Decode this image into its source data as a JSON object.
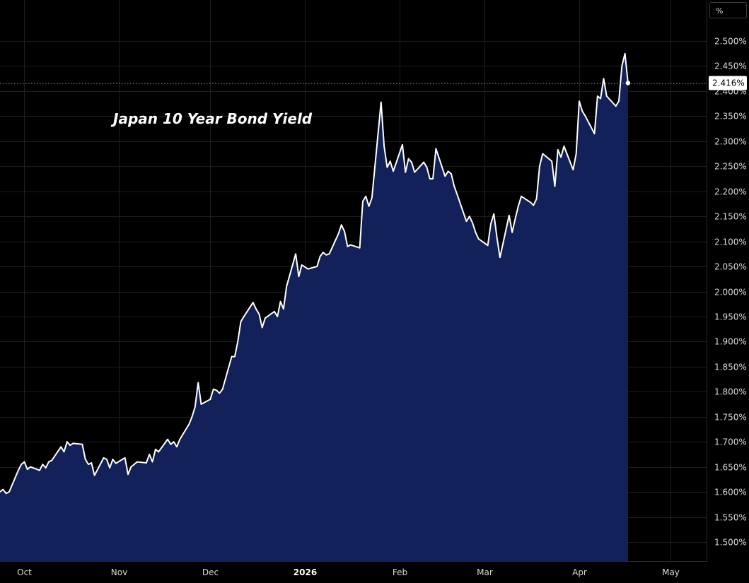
{
  "chart_data": {
    "type": "area",
    "title": "Japan 10 Year Bond Yield",
    "unit": "%",
    "last_value": 2.416,
    "last_value_label": "2.416%",
    "ylim": [
      1.46,
      2.56
    ],
    "y_ticks": [
      {
        "value": 1.5,
        "label": "1.500%"
      },
      {
        "value": 1.55,
        "label": "1.550%"
      },
      {
        "value": 1.6,
        "label": "1.600%"
      },
      {
        "value": 1.65,
        "label": "1.650%"
      },
      {
        "value": 1.7,
        "label": "1.700%"
      },
      {
        "value": 1.75,
        "label": "1.750%"
      },
      {
        "value": 1.8,
        "label": "1.800%"
      },
      {
        "value": 1.85,
        "label": "1.850%"
      },
      {
        "value": 1.9,
        "label": "1.900%"
      },
      {
        "value": 1.95,
        "label": "1.950%"
      },
      {
        "value": 2.0,
        "label": "2.000%"
      },
      {
        "value": 2.05,
        "label": "2.050%"
      },
      {
        "value": 2.1,
        "label": "2.100%"
      },
      {
        "value": 2.15,
        "label": "2.150%"
      },
      {
        "value": 2.2,
        "label": "2.200%"
      },
      {
        "value": 2.25,
        "label": "2.250%"
      },
      {
        "value": 2.3,
        "label": "2.300%"
      },
      {
        "value": 2.35,
        "label": "2.350%"
      },
      {
        "value": 2.4,
        "label": "2.400%"
      },
      {
        "value": 2.45,
        "label": "2.450%"
      },
      {
        "value": 2.5,
        "label": "2.500%"
      }
    ],
    "x_ticks": [
      {
        "date": "2025-10-01",
        "label": "Oct",
        "bold": false
      },
      {
        "date": "2025-11-01",
        "label": "Nov",
        "bold": false
      },
      {
        "date": "2025-12-01",
        "label": "Dec",
        "bold": false
      },
      {
        "date": "2026-01-01",
        "label": "2026",
        "bold": true
      },
      {
        "date": "2026-02-01",
        "label": "Feb",
        "bold": false
      },
      {
        "date": "2026-03-01",
        "label": "Mar",
        "bold": false
      },
      {
        "date": "2026-04-01",
        "label": "Apr",
        "bold": false
      },
      {
        "date": "2026-05-01",
        "label": "May",
        "bold": false
      }
    ],
    "xlim": [
      "2025-09-23",
      "2026-05-13"
    ],
    "grid": true,
    "colors": {
      "background": "#000000",
      "area_fill": "#13215a",
      "line": "#ffffff",
      "grid": "#1f1f1f"
    },
    "series": [
      {
        "points": [
          [
            "2025-09-23",
            1.6
          ],
          [
            "2025-09-24",
            1.605
          ],
          [
            "2025-09-25",
            1.597
          ],
          [
            "2025-09-26",
            1.6
          ],
          [
            "2025-09-29",
            1.643
          ],
          [
            "2025-09-30",
            1.655
          ],
          [
            "2025-10-01",
            1.66
          ],
          [
            "2025-10-02",
            1.645
          ],
          [
            "2025-10-03",
            1.65
          ],
          [
            "2025-10-06",
            1.643
          ],
          [
            "2025-10-07",
            1.655
          ],
          [
            "2025-10-08",
            1.648
          ],
          [
            "2025-10-09",
            1.66
          ],
          [
            "2025-10-10",
            1.663
          ],
          [
            "2025-10-13",
            1.69
          ],
          [
            "2025-10-14",
            1.68
          ],
          [
            "2025-10-15",
            1.7
          ],
          [
            "2025-10-16",
            1.693
          ],
          [
            "2025-10-17",
            1.697
          ],
          [
            "2025-10-20",
            1.695
          ],
          [
            "2025-10-21",
            1.665
          ],
          [
            "2025-10-22",
            1.655
          ],
          [
            "2025-10-23",
            1.658
          ],
          [
            "2025-10-24",
            1.633
          ],
          [
            "2025-10-27",
            1.668
          ],
          [
            "2025-10-28",
            1.665
          ],
          [
            "2025-10-29",
            1.648
          ],
          [
            "2025-10-30",
            1.665
          ],
          [
            "2025-10-31",
            1.657
          ],
          [
            "2025-11-03",
            1.668
          ],
          [
            "2025-11-04",
            1.635
          ],
          [
            "2025-11-05",
            1.65
          ],
          [
            "2025-11-06",
            1.655
          ],
          [
            "2025-11-07",
            1.66
          ],
          [
            "2025-11-10",
            1.658
          ],
          [
            "2025-11-11",
            1.675
          ],
          [
            "2025-11-12",
            1.66
          ],
          [
            "2025-11-13",
            1.685
          ],
          [
            "2025-11-14",
            1.68
          ],
          [
            "2025-11-17",
            1.705
          ],
          [
            "2025-11-18",
            1.695
          ],
          [
            "2025-11-19",
            1.7
          ],
          [
            "2025-11-20",
            1.69
          ],
          [
            "2025-11-21",
            1.705
          ],
          [
            "2025-11-24",
            1.735
          ],
          [
            "2025-11-25",
            1.75
          ],
          [
            "2025-11-26",
            1.77
          ],
          [
            "2025-11-27",
            1.818
          ],
          [
            "2025-11-28",
            1.775
          ],
          [
            "2025-12-01",
            1.785
          ],
          [
            "2025-12-02",
            1.805
          ],
          [
            "2025-12-03",
            1.803
          ],
          [
            "2025-12-04",
            1.797
          ],
          [
            "2025-12-05",
            1.805
          ],
          [
            "2025-12-08",
            1.87
          ],
          [
            "2025-12-09",
            1.87
          ],
          [
            "2025-12-10",
            1.9
          ],
          [
            "2025-12-11",
            1.94
          ],
          [
            "2025-12-12",
            1.95
          ],
          [
            "2025-12-15",
            1.978
          ],
          [
            "2025-12-16",
            1.965
          ],
          [
            "2025-12-17",
            1.955
          ],
          [
            "2025-12-18",
            1.928
          ],
          [
            "2025-12-19",
            1.947
          ],
          [
            "2025-12-22",
            1.96
          ],
          [
            "2025-12-23",
            1.95
          ],
          [
            "2025-12-24",
            1.98
          ],
          [
            "2025-12-25",
            1.965
          ],
          [
            "2025-12-26",
            2.01
          ],
          [
            "2025-12-29",
            2.075
          ],
          [
            "2025-12-30",
            2.03
          ],
          [
            "2025-12-31",
            2.053
          ],
          [
            "2026-01-02",
            2.045
          ],
          [
            "2026-01-05",
            2.05
          ],
          [
            "2026-01-06",
            2.07
          ],
          [
            "2026-01-07",
            2.078
          ],
          [
            "2026-01-08",
            2.073
          ],
          [
            "2026-01-09",
            2.075
          ],
          [
            "2026-01-12",
            2.115
          ],
          [
            "2026-01-13",
            2.133
          ],
          [
            "2026-01-14",
            2.12
          ],
          [
            "2026-01-15",
            2.09
          ],
          [
            "2026-01-16",
            2.093
          ],
          [
            "2026-01-19",
            2.087
          ],
          [
            "2026-01-20",
            2.18
          ],
          [
            "2026-01-21",
            2.19
          ],
          [
            "2026-01-22",
            2.17
          ],
          [
            "2026-01-23",
            2.187
          ],
          [
            "2026-01-26",
            2.378
          ],
          [
            "2026-01-27",
            2.29
          ],
          [
            "2026-01-28",
            2.248
          ],
          [
            "2026-01-29",
            2.26
          ],
          [
            "2026-01-30",
            2.24
          ],
          [
            "2026-02-02",
            2.293
          ],
          [
            "2026-02-03",
            2.238
          ],
          [
            "2026-02-04",
            2.265
          ],
          [
            "2026-02-05",
            2.258
          ],
          [
            "2026-02-06",
            2.238
          ],
          [
            "2026-02-09",
            2.258
          ],
          [
            "2026-02-10",
            2.248
          ],
          [
            "2026-02-11",
            2.225
          ],
          [
            "2026-02-12",
            2.225
          ],
          [
            "2026-02-13",
            2.285
          ],
          [
            "2026-02-16",
            2.23
          ],
          [
            "2026-02-17",
            2.24
          ],
          [
            "2026-02-18",
            2.235
          ],
          [
            "2026-02-19",
            2.21
          ],
          [
            "2026-02-20",
            2.193
          ],
          [
            "2026-02-23",
            2.14
          ],
          [
            "2026-02-24",
            2.15
          ],
          [
            "2026-02-25",
            2.137
          ],
          [
            "2026-02-26",
            2.118
          ],
          [
            "2026-02-27",
            2.105
          ],
          [
            "2026-03-02",
            2.092
          ],
          [
            "2026-03-03",
            2.135
          ],
          [
            "2026-03-04",
            2.155
          ],
          [
            "2026-03-05",
            2.108
          ],
          [
            "2026-03-06",
            2.068
          ],
          [
            "2026-03-09",
            2.152
          ],
          [
            "2026-03-10",
            2.118
          ],
          [
            "2026-03-11",
            2.145
          ],
          [
            "2026-03-12",
            2.17
          ],
          [
            "2026-03-13",
            2.19
          ],
          [
            "2026-03-16",
            2.178
          ],
          [
            "2026-03-17",
            2.172
          ],
          [
            "2026-03-18",
            2.185
          ],
          [
            "2026-03-19",
            2.25
          ],
          [
            "2026-03-20",
            2.275
          ],
          [
            "2026-03-23",
            2.26
          ],
          [
            "2026-03-24",
            2.21
          ],
          [
            "2026-03-25",
            2.283
          ],
          [
            "2026-03-26",
            2.268
          ],
          [
            "2026-03-27",
            2.29
          ],
          [
            "2026-03-30",
            2.243
          ],
          [
            "2026-03-31",
            2.275
          ],
          [
            "2026-04-01",
            2.38
          ],
          [
            "2026-04-02",
            2.36
          ],
          [
            "2026-04-03",
            2.35
          ],
          [
            "2026-04-06",
            2.315
          ],
          [
            "2026-04-07",
            2.39
          ],
          [
            "2026-04-08",
            2.385
          ],
          [
            "2026-04-09",
            2.425
          ],
          [
            "2026-04-10",
            2.39
          ],
          [
            "2026-04-13",
            2.37
          ],
          [
            "2026-04-14",
            2.38
          ],
          [
            "2026-04-15",
            2.45
          ],
          [
            "2026-04-16",
            2.475
          ],
          [
            "2026-04-17",
            2.416
          ]
        ]
      }
    ]
  }
}
